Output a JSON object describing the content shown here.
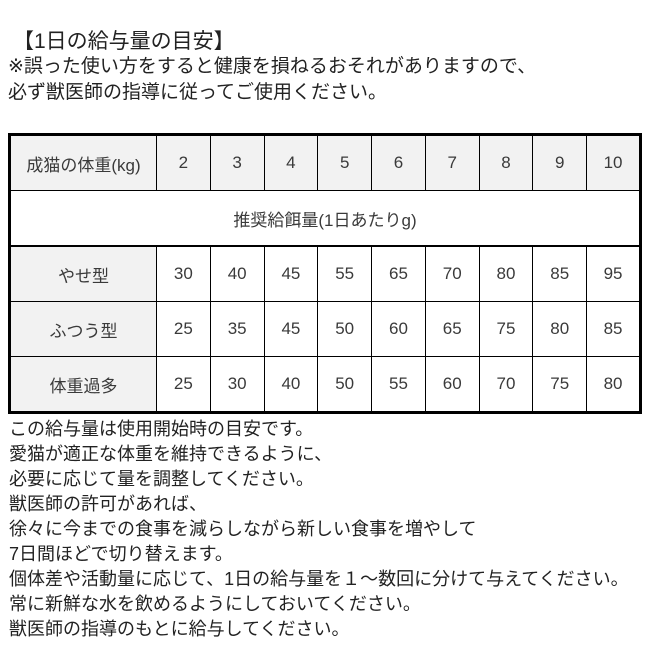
{
  "page": {
    "title": "【1日の給与量の目安】",
    "warning_lines": [
      "※誤った使い方をすると健康を損ねるおそれがありますので、",
      "必ず獣医師の指導に従ってご使用ください。"
    ]
  },
  "table": {
    "corner_label": "成猫の体重(kg)",
    "weights": [
      "2",
      "3",
      "4",
      "5",
      "6",
      "7",
      "8",
      "9",
      "10"
    ],
    "subheader": "推奨給餌量(1日あたりg)",
    "rows": [
      {
        "label": "やせ型",
        "values": [
          "30",
          "40",
          "45",
          "55",
          "65",
          "70",
          "80",
          "85",
          "95"
        ]
      },
      {
        "label": "ふつう型",
        "values": [
          "25",
          "35",
          "45",
          "50",
          "60",
          "65",
          "75",
          "80",
          "85"
        ]
      },
      {
        "label": "体重過多",
        "values": [
          "25",
          "30",
          "40",
          "50",
          "55",
          "60",
          "70",
          "75",
          "80"
        ]
      }
    ]
  },
  "notes": [
    "この給与量は使用開始時の目安です。",
    "愛猫が適正な体重を維持できるように、",
    "必要に応じて量を調整してください。",
    "獣医師の許可があれば、",
    "徐々に今までの食事を減らしながら新しい食事を増やして",
    "7日間ほどで切り替えます。",
    "個体差や活動量に応じて、1日の給与量を１～数回に分けて与えてください。",
    "常に新鮮な水を飲めるようにしておいてください。",
    "獣医師の指導のもとに給与してください。"
  ],
  "chart_data": {
    "type": "table",
    "title": "1日の給与量の目安",
    "row_header": "成猫の体重(kg)",
    "columns_kg": [
      2,
      3,
      4,
      5,
      6,
      7,
      8,
      9,
      10
    ],
    "value_unit": "推奨給餌量(1日あたりg)",
    "series": [
      {
        "name": "やせ型",
        "values": [
          30,
          40,
          45,
          55,
          65,
          70,
          80,
          85,
          95
        ]
      },
      {
        "name": "ふつう型",
        "values": [
          25,
          35,
          45,
          50,
          60,
          65,
          75,
          80,
          85
        ]
      },
      {
        "name": "体重過多",
        "values": [
          25,
          30,
          40,
          50,
          55,
          60,
          70,
          75,
          80
        ]
      }
    ]
  },
  "colors": {
    "header_bg": "#f2f2f2",
    "border": "#000000",
    "table_text": "#3a3a3a",
    "body_text": "#222222"
  }
}
